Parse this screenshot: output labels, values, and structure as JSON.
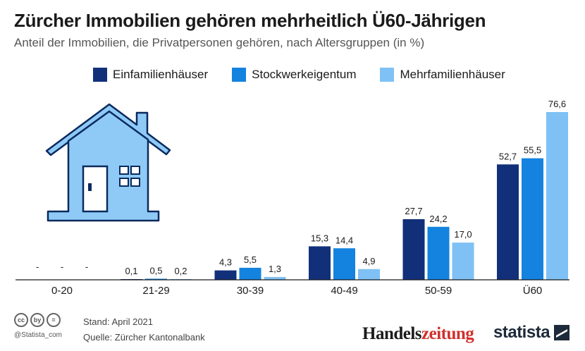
{
  "title": "Zürcher Immobilien gehören mehrheitlich Ü60-Jährigen",
  "subtitle": "Anteil der Immobilien, die Privatpersonen gehören, nach Altersgruppen (in %)",
  "colors": {
    "series": [
      "#12307a",
      "#1483e0",
      "#7fc1f4"
    ],
    "house": "#8fcaf7",
    "house_outline": "#0a2a5e"
  },
  "chart_data": {
    "type": "bar",
    "title": "Zürcher Immobilien gehören mehrheitlich Ü60-Jährigen",
    "subtitle": "Anteil der Immobilien, die Privatpersonen gehören, nach Altersgruppen (in %)",
    "categories": [
      "0-20",
      "21-29",
      "30-39",
      "40-49",
      "50-59",
      "Ü60"
    ],
    "series": [
      {
        "name": "Einfamilienhäuser",
        "values": [
          null,
          0.1,
          4.3,
          15.3,
          27.7,
          52.7
        ],
        "labels": [
          "-",
          "0,1",
          "4,3",
          "15,3",
          "27,7",
          "52,7"
        ]
      },
      {
        "name": "Stockwerkeigentum",
        "values": [
          null,
          0.5,
          5.5,
          14.4,
          24.2,
          55.5
        ],
        "labels": [
          "-",
          "0,5",
          "5,5",
          "14,4",
          "24,2",
          "55,5"
        ]
      },
      {
        "name": "Mehrfamilienhäuser",
        "values": [
          null,
          0.2,
          1.3,
          4.9,
          17.0,
          76.6
        ],
        "labels": [
          "-",
          "0,2",
          "1,3",
          "4,9",
          "17,0",
          "76,6"
        ]
      }
    ],
    "ylim": [
      0,
      76.6
    ],
    "legend_position": "top",
    "grid": false
  },
  "footer": {
    "handle": "@Statista_com",
    "stand": "Stand: April 2021",
    "quelle": "Quelle: Zürcher Kantonalbank",
    "logo_hz_a": "Handels",
    "logo_hz_b": "zeitung",
    "logo_statista": "statista",
    "cc_icons": [
      "cc",
      "by",
      "="
    ]
  }
}
